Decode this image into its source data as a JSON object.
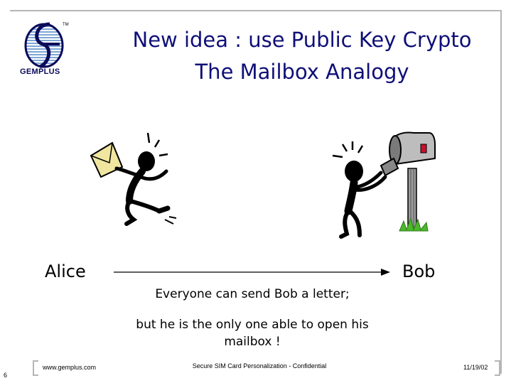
{
  "logo": {
    "text": "GEMPLUS",
    "tm": "TM"
  },
  "title": {
    "line1": "New idea : use Public Key Crypto",
    "line2": "The Mailbox Analogy"
  },
  "scene": {
    "alice": "Alice",
    "bob": "Bob",
    "caption1": "Everyone can send Bob a letter;",
    "caption2": "but he is the only one able to open his mailbox !"
  },
  "footer": {
    "page": "6",
    "url": "www.gemplus.com",
    "center": "Secure SIM Card Personalization - Confidential",
    "date": "11/19/02"
  },
  "colors": {
    "title": "#0f0f78",
    "frame": "#b5b5b5",
    "envelope": "#f0e6a0",
    "mailbox": "#9a9a9a",
    "flag": "#c8102e",
    "grass": "#4cb82a"
  }
}
